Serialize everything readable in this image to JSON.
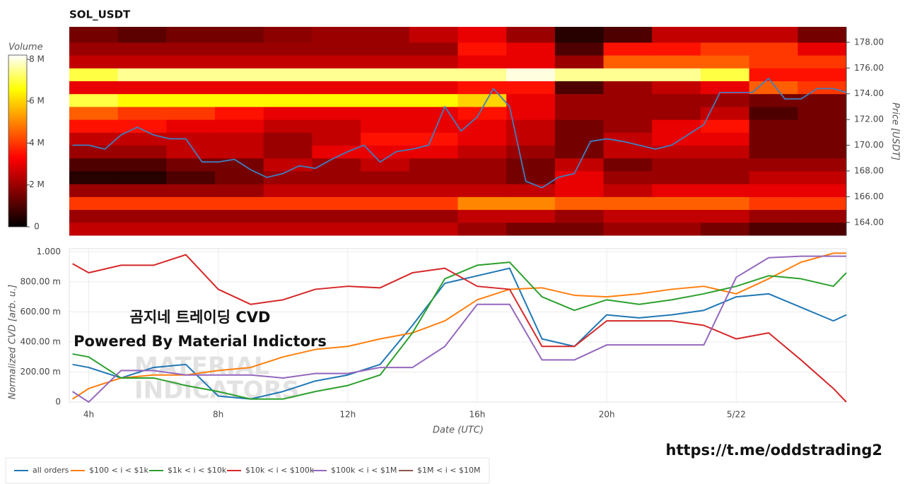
{
  "chart_data": [
    {
      "type": "heatmap",
      "title": "SOL_USDT",
      "x_bins": [
        3.4,
        4.9,
        6.4,
        7.9,
        9.4,
        10.9,
        12.4,
        13.9,
        15.4,
        16.9,
        18.4,
        19.9,
        21.4,
        22.9,
        24.4,
        25.9,
        27.4
      ],
      "y_bins": [
        163,
        164,
        165,
        166,
        167,
        168,
        169,
        170,
        171,
        172,
        173,
        174,
        175,
        176,
        177,
        178,
        179.2
      ],
      "z": [
        [
          2.5,
          2.5,
          2.5,
          2.5,
          2.5,
          2.5,
          2.5,
          2.5,
          2,
          1.5,
          1.5,
          2,
          2,
          1.5,
          1,
          1
        ],
        [
          2,
          2,
          2,
          2,
          2,
          2,
          2,
          2,
          2.5,
          2.5,
          2,
          2.5,
          2.5,
          2.5,
          2,
          2
        ],
        [
          4,
          4,
          4,
          4,
          4,
          4,
          4,
          4,
          5,
          5,
          4.5,
          4.5,
          4.5,
          4.5,
          4,
          4
        ],
        [
          2,
          2,
          2,
          2,
          2.5,
          2.5,
          2.5,
          2.5,
          2.5,
          2.5,
          3,
          2.5,
          3,
          3,
          3,
          3
        ],
        [
          0.5,
          0.5,
          1,
          1.5,
          2,
          2,
          2,
          2,
          2,
          1.5,
          3,
          2,
          2,
          2,
          2.5,
          2.5
        ],
        [
          1,
          1,
          1.5,
          1.5,
          2.5,
          2,
          2.5,
          2,
          2,
          1.5,
          2.5,
          1.5,
          2,
          2,
          2,
          2
        ],
        [
          2,
          2,
          2.5,
          2.5,
          2,
          3,
          3,
          3,
          2.5,
          2,
          1.5,
          2.5,
          2.5,
          2.5,
          1.5,
          1.5
        ],
        [
          2.5,
          2.5,
          2.5,
          2.5,
          2,
          2.5,
          3.5,
          3.5,
          3,
          2.5,
          1.5,
          2.5,
          3,
          3,
          1.5,
          1.5
        ],
        [
          3.5,
          3.5,
          3,
          3,
          2.5,
          2.5,
          3,
          3,
          3,
          2.5,
          1.5,
          2,
          3,
          3.5,
          1.5,
          1.5
        ],
        [
          4.5,
          4,
          4,
          3.5,
          3,
          3,
          3,
          3,
          3.5,
          3,
          2,
          2,
          2,
          2.5,
          1,
          1.5
        ],
        [
          7,
          6.5,
          6.5,
          6.5,
          6.5,
          6.5,
          6.5,
          6.5,
          6,
          3,
          2,
          2,
          2,
          2,
          1.5,
          1.5
        ],
        [
          3,
          3,
          3,
          3,
          3,
          3,
          3,
          3,
          3.5,
          3.5,
          1,
          2,
          2.5,
          3,
          4.5,
          4
        ],
        [
          7,
          7.5,
          7.5,
          7.5,
          7.5,
          7.5,
          7.5,
          7.5,
          7.5,
          8,
          7.5,
          7.5,
          7.5,
          7,
          3.5,
          3.5
        ],
        [
          2.5,
          2.5,
          2.5,
          2.5,
          2.5,
          2.5,
          2.5,
          2.5,
          3,
          3,
          2,
          4.5,
          4.5,
          4.5,
          4,
          4
        ],
        [
          2,
          2,
          2,
          2,
          2,
          2,
          2,
          2,
          3.5,
          3,
          1,
          3.5,
          3.5,
          4,
          4,
          3
        ],
        [
          1.5,
          1.2,
          1.5,
          1.5,
          1.8,
          2,
          2,
          2.5,
          3,
          2,
          0.5,
          1,
          2.5,
          2.5,
          2.5,
          1.5
        ]
      ],
      "colorscale": "hot",
      "colorbar": {
        "title": "Volume",
        "zlim": [
          0,
          8.2
        ],
        "ticks": [
          0,
          {
            "value": 2,
            "label": "2 M"
          },
          {
            "value": 4,
            "label": "4 M"
          },
          {
            "value": 6,
            "label": "6 M"
          },
          {
            "value": 8,
            "label": "8 M"
          }
        ]
      },
      "xlim": [
        3.4,
        27.4
      ],
      "ylim": [
        163,
        179.2
      ],
      "yticks": [
        {
          "value": 164,
          "label": "164.00"
        },
        {
          "value": 166,
          "label": "166.00"
        },
        {
          "value": 168,
          "label": "168.00"
        },
        {
          "value": 170,
          "label": "170.00"
        },
        {
          "value": 172,
          "label": "172.00"
        },
        {
          "value": 174,
          "label": "174.00"
        },
        {
          "value": 176,
          "label": "176.00"
        },
        {
          "value": 178,
          "label": "178.00"
        }
      ],
      "ylabel": "Price [USDT]",
      "line": {
        "color": "#3f7fbf",
        "x": [
          3.5,
          4,
          4.5,
          5,
          5.5,
          6,
          6.5,
          7,
          7.5,
          8,
          8.5,
          9,
          9.5,
          10,
          10.5,
          11,
          11.5,
          12,
          12.5,
          13,
          13.5,
          14,
          14.5,
          15,
          15.5,
          16,
          16.5,
          17,
          17.5,
          18,
          18.5,
          19,
          19.5,
          20,
          20.5,
          21,
          21.5,
          22,
          22.5,
          23,
          23.5,
          24,
          24.5,
          25,
          25.5,
          26,
          26.5,
          27,
          27.4
        ],
        "values": [
          170.0,
          170.0,
          169.7,
          170.8,
          171.4,
          170.8,
          170.5,
          170.5,
          168.7,
          168.7,
          168.9,
          168.1,
          167.5,
          167.8,
          168.4,
          168.2,
          168.9,
          169.5,
          170.0,
          168.7,
          169.5,
          169.7,
          170.0,
          173.0,
          171.1,
          172.2,
          174.4,
          173.0,
          167.2,
          166.7,
          167.5,
          167.8,
          170.3,
          170.5,
          170.3,
          170.0,
          169.7,
          170.0,
          170.8,
          171.6,
          174.1,
          174.1,
          174.1,
          175.2,
          173.6,
          173.6,
          174.4,
          174.4,
          174.1
        ]
      }
    },
    {
      "type": "line",
      "x": [
        3.5,
        4,
        5,
        6,
        7,
        8,
        9,
        10,
        11,
        12,
        13,
        14,
        15,
        16,
        17,
        18,
        19,
        20,
        21,
        22,
        23,
        24,
        25,
        26,
        27,
        27.4
      ],
      "xlim": [
        3.4,
        27.4
      ],
      "xticks": [
        {
          "value": 4,
          "label": "4h"
        },
        {
          "value": 8,
          "label": "8h"
        },
        {
          "value": 12,
          "label": "12h"
        },
        {
          "value": 16,
          "label": "16h"
        },
        {
          "value": 20,
          "label": "20h"
        },
        {
          "value": 24,
          "label": "5/22"
        }
      ],
      "xlabel": "Date (UTC)",
      "ylabel": "Normalized CVD [arb. u.]",
      "ylim": [
        0,
        1.02
      ],
      "yticks": [
        0,
        {
          "value": 0.2,
          "label": "200.00 m"
        },
        {
          "value": 0.4,
          "label": "400.00 m"
        },
        {
          "value": 0.6,
          "label": "600.00 m"
        },
        {
          "value": 0.8,
          "label": "800.00 m"
        },
        {
          "value": 1,
          "label": "1.000"
        }
      ],
      "grid": true,
      "legend": "bottom-left",
      "series": [
        {
          "name": "all orders",
          "color": "#1f77b4",
          "values": [
            0.25,
            0.23,
            0.16,
            0.23,
            0.25,
            0.04,
            0.02,
            0.07,
            0.14,
            0.18,
            0.25,
            0.51,
            0.79,
            0.84,
            0.89,
            0.42,
            0.37,
            0.58,
            0.56,
            0.58,
            0.61,
            0.7,
            0.72,
            0.63,
            0.54,
            0.58
          ]
        },
        {
          "name": "$100 < i < $1k",
          "color": "#ff7f0e",
          "values": [
            0.02,
            0.09,
            0.16,
            0.18,
            0.18,
            0.21,
            0.23,
            0.3,
            0.35,
            0.37,
            0.42,
            0.46,
            0.54,
            0.68,
            0.75,
            0.76,
            0.71,
            0.7,
            0.72,
            0.75,
            0.77,
            0.72,
            0.82,
            0.93,
            0.99,
            0.99
          ]
        },
        {
          "name": "$1k < i < $10k",
          "color": "#2ca02c",
          "values": [
            0.32,
            0.3,
            0.16,
            0.16,
            0.11,
            0.07,
            0.02,
            0.02,
            0.07,
            0.11,
            0.18,
            0.46,
            0.82,
            0.91,
            0.93,
            0.7,
            0.61,
            0.68,
            0.65,
            0.68,
            0.72,
            0.77,
            0.84,
            0.82,
            0.77,
            0.86
          ]
        },
        {
          "name": "$10k < i < $100k",
          "color": "#d62728",
          "values": [
            0.92,
            0.86,
            0.91,
            0.91,
            0.98,
            0.75,
            0.65,
            0.68,
            0.75,
            0.77,
            0.76,
            0.86,
            0.89,
            0.77,
            0.75,
            0.37,
            0.37,
            0.54,
            0.54,
            0.54,
            0.51,
            0.42,
            0.46,
            0.28,
            0.09,
            0.0
          ]
        },
        {
          "name": "$100k < i < $1M",
          "color": "#9467bd",
          "values": [
            0.07,
            0.0,
            0.21,
            0.21,
            0.18,
            0.18,
            0.18,
            0.16,
            0.19,
            0.19,
            0.23,
            0.23,
            0.37,
            0.65,
            0.65,
            0.28,
            0.28,
            0.38,
            0.38,
            0.38,
            0.38,
            0.83,
            0.96,
            0.97,
            0.97,
            0.97
          ]
        },
        {
          "name": "$1M < i < $10M",
          "color": "#8c564b",
          "values": [
            null,
            null,
            null,
            null,
            null,
            null,
            null,
            null,
            null,
            null,
            null,
            null,
            null,
            null,
            null,
            null,
            null,
            null,
            null,
            null,
            null,
            null,
            null,
            null,
            null,
            null
          ]
        }
      ]
    }
  ],
  "annotations": [
    "곰지네 트레이딩 CVD",
    "Powered By Material Indictors"
  ],
  "watermark": [
    "MATERIAL",
    "INDICATORS"
  ],
  "link": "https://t.me/oddstrading2"
}
